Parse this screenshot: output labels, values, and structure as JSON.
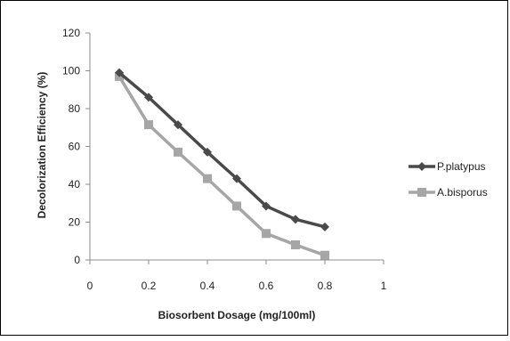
{
  "chart_data": {
    "type": "line",
    "title": "",
    "xlabel": "Biosorbent Dosage (mg/100ml)",
    "ylabel": "Decolorization Efficiency (%)",
    "xlim": [
      0,
      1
    ],
    "ylim": [
      0,
      120
    ],
    "x_ticks": [
      "0",
      "0.2",
      "0.4",
      "0.6",
      "0.8",
      "1"
    ],
    "y_ticks": [
      "0",
      "20",
      "40",
      "60",
      "80",
      "100",
      "120"
    ],
    "grid": false,
    "legend_position": "right",
    "series": [
      {
        "name": "P.platypus",
        "marker": "diamond",
        "color": "#4a4a4a",
        "x": [
          0.1,
          0.2,
          0.3,
          0.4,
          0.5,
          0.6,
          0.7,
          0.8
        ],
        "values": [
          99,
          86,
          71.5,
          57,
          43,
          28.5,
          21.5,
          17.5
        ]
      },
      {
        "name": "A.bisporus",
        "marker": "square",
        "color": "#a6a6a6",
        "x": [
          0.1,
          0.2,
          0.3,
          0.4,
          0.5,
          0.6,
          0.7,
          0.8
        ],
        "values": [
          97,
          71.5,
          57,
          43,
          28.5,
          14,
          8,
          2.5
        ]
      }
    ]
  }
}
